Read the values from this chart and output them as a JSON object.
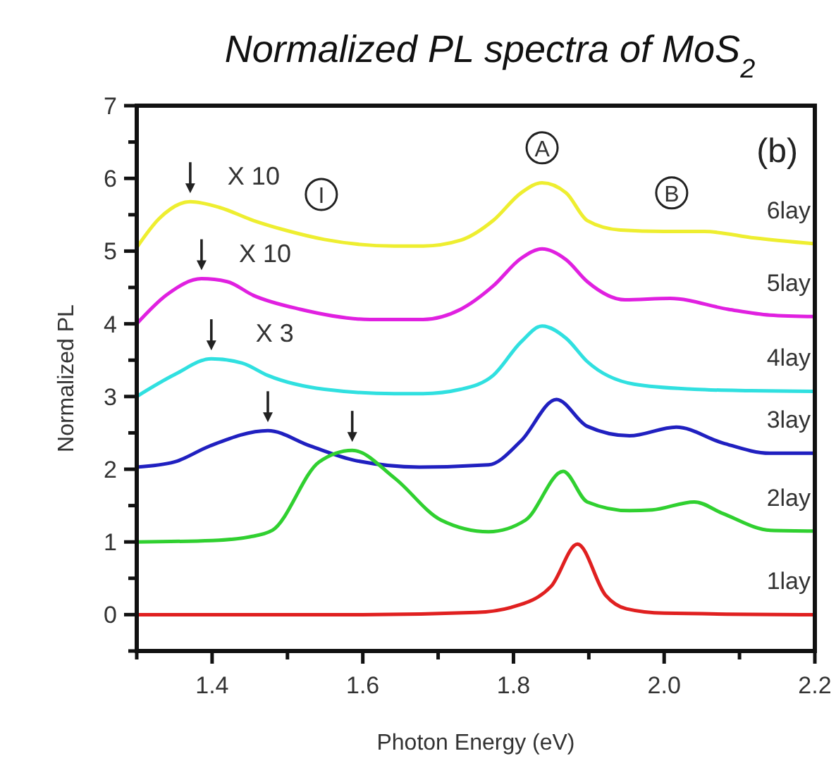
{
  "chart_data": {
    "type": "line",
    "title": "Normalized PL spectra of MoS$_{2}$",
    "xlabel": "Photon Energy (eV)",
    "ylabel": "Normalized PL",
    "xlim": [
      1.3,
      2.2
    ],
    "xticks": [
      {
        "value": 1.3,
        "label": null
      },
      1.4,
      {
        "value": 1.5,
        "label": null
      },
      1.6,
      {
        "value": 1.7,
        "label": null
      },
      1.8,
      {
        "value": 1.9,
        "label": null
      },
      {
        "value": 2,
        "label": "2.0"
      },
      {
        "value": 2.1,
        "label": null
      },
      2.2
    ],
    "ylim": [
      -0.5,
      7
    ],
    "yticks": [
      {
        "value": -0.5,
        "label": null
      },
      0,
      {
        "value": 0.5,
        "label": null
      },
      1,
      {
        "value": 1.5,
        "label": null
      },
      2,
      {
        "value": 2.5,
        "label": null
      },
      3,
      {
        "value": 3.5,
        "label": null
      },
      4,
      {
        "value": 4.5,
        "label": null
      },
      5,
      {
        "value": 5.5,
        "label": null
      },
      6,
      {
        "value": 6.5,
        "label": null
      },
      7
    ],
    "grid": false,
    "marker": "none",
    "line_style": "solid",
    "series": [
      {
        "name": "6lay",
        "color": "#eeee30",
        "x": [
          1.3,
          1.33,
          1.371,
          1.41,
          1.455,
          1.5,
          1.549,
          1.642,
          1.68,
          1.73,
          1.773,
          1.81,
          1.838,
          1.87,
          1.898,
          1.942,
          2.0,
          2.053,
          2.12,
          2.2
        ],
        "values": [
          5.05,
          5.45,
          5.68,
          5.6,
          5.42,
          5.28,
          5.16,
          5.07,
          5.07,
          5.15,
          5.42,
          5.8,
          5.94,
          5.8,
          5.42,
          5.29,
          5.27,
          5.27,
          5.18,
          5.1
        ]
      },
      {
        "name": "5lay",
        "color": "#e020e0",
        "x": [
          1.3,
          1.34,
          1.386,
          1.42,
          1.455,
          1.517,
          1.61,
          1.68,
          1.73,
          1.773,
          1.81,
          1.838,
          1.87,
          1.898,
          1.948,
          2.008,
          2.085,
          2.14,
          2.2
        ],
        "values": [
          4.0,
          4.4,
          4.62,
          4.58,
          4.39,
          4.2,
          4.06,
          4.06,
          4.2,
          4.52,
          4.9,
          5.03,
          4.88,
          4.58,
          4.33,
          4.35,
          4.2,
          4.12,
          4.1
        ]
      },
      {
        "name": "4lay",
        "color": "#30e0e0",
        "x": [
          1.3,
          1.35,
          1.399,
          1.44,
          1.474,
          1.549,
          1.642,
          1.68,
          1.73,
          1.773,
          1.81,
          1.838,
          1.87,
          1.898,
          1.96,
          2.04,
          2.115,
          2.2
        ],
        "values": [
          3.0,
          3.3,
          3.52,
          3.46,
          3.29,
          3.1,
          3.04,
          3.04,
          3.1,
          3.29,
          3.75,
          3.97,
          3.8,
          3.48,
          3.17,
          3.1,
          3.08,
          3.07
        ]
      },
      {
        "name": "3lay",
        "color": "#2020c0",
        "x": [
          1.3,
          1.35,
          1.397,
          1.474,
          1.53,
          1.59,
          1.675,
          1.767,
          1.81,
          1.857,
          1.898,
          1.954,
          2.016,
          2.078,
          2.14,
          2.2
        ],
        "values": [
          2.03,
          2.1,
          2.32,
          2.53,
          2.32,
          2.12,
          2.03,
          2.06,
          2.39,
          2.96,
          2.59,
          2.46,
          2.58,
          2.36,
          2.22,
          2.22
        ]
      },
      {
        "name": "2lay",
        "color": "#30d030",
        "x": [
          1.3,
          1.4,
          1.45,
          1.48,
          1.542,
          1.586,
          1.642,
          1.704,
          1.767,
          1.816,
          1.866,
          1.898,
          1.954,
          1.984,
          2.04,
          2.078,
          2.141,
          2.2
        ],
        "values": [
          1.0,
          1.02,
          1.07,
          1.16,
          2.1,
          2.26,
          1.88,
          1.3,
          1.14,
          1.3,
          1.97,
          1.55,
          1.43,
          1.44,
          1.55,
          1.39,
          1.16,
          1.15
        ]
      },
      {
        "name": "1lay",
        "color": "#e02020",
        "x": [
          1.3,
          1.6,
          1.75,
          1.797,
          1.85,
          1.885,
          1.922,
          1.95,
          2.0,
          2.2
        ],
        "values": [
          0,
          0,
          0.03,
          0.1,
          0.39,
          0.97,
          0.27,
          0.08,
          0.02,
          0
        ]
      }
    ],
    "annotations": [
      {
        "text": "X 10",
        "x": 1.371,
        "y": 5.68
      },
      {
        "text": "X 10",
        "x": 1.386,
        "y": 4.62
      },
      {
        "text": "X 3",
        "x": 1.399,
        "y": 3.52
      },
      {
        "text": "I",
        "x": 1.545,
        "y": 5.78
      },
      {
        "text": "A",
        "x": 1.838,
        "y": 6.42
      },
      {
        "text": "B",
        "x": 2.01,
        "y": 5.8
      },
      "(b)"
    ]
  }
}
